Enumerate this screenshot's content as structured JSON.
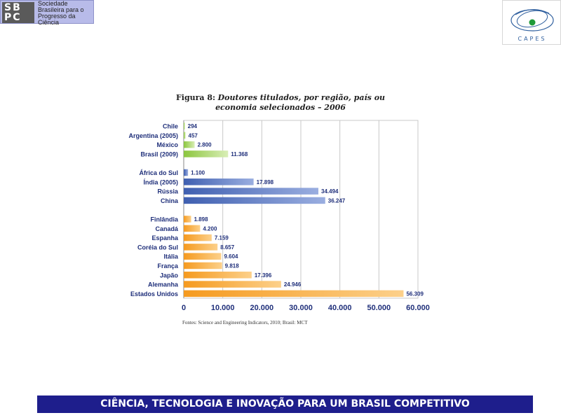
{
  "sbpc_logo": {
    "mark_line1": "SB",
    "mark_line2": "PC",
    "text_lines": [
      "Sociedade",
      "Brasileira para o",
      "Progresso da",
      "Ciência"
    ]
  },
  "capes_logo": {
    "text": "CAPES"
  },
  "figure": {
    "label": "Figura 8:",
    "title_line1": "Doutores titulados, por região, país ou",
    "title_line2": "economia selecionados – 2006"
  },
  "source": "Fontes: Science and Engineering Indicators, 2010; Brasil: MCT",
  "banner": "CIÊNCIA, TECNOLOGIA E INOVAÇÃO PARA UM BRASIL COMPETITIVO",
  "chart_data": {
    "type": "bar",
    "orientation": "horizontal",
    "xlim": [
      0,
      60000
    ],
    "x_ticks": [
      "0",
      "10.000",
      "20.000",
      "30.000",
      "40.000",
      "50.000",
      "60.000"
    ],
    "grid": true,
    "groups": [
      {
        "color": "#8cc63f",
        "light": "#d9eeb6",
        "items": [
          {
            "label": "Chile",
            "value": 294,
            "value_label": "294"
          },
          {
            "label": "Argentina (2005)",
            "value": 457,
            "value_label": "457"
          },
          {
            "label": "México",
            "value": 2800,
            "value_label": "2.800"
          },
          {
            "label": "Brasil (2009)",
            "value": 11368,
            "value_label": "11.368"
          }
        ]
      },
      {
        "color": "#3f5fb0",
        "light": "#9aaee0",
        "items": [
          {
            "label": "África do Sul",
            "value": 1100,
            "value_label": "1.100"
          },
          {
            "label": "Índia (2005)",
            "value": 17898,
            "value_label": "17.898"
          },
          {
            "label": "Rússia",
            "value": 34494,
            "value_label": "34.494"
          },
          {
            "label": "China",
            "value": 36247,
            "value_label": "36.247"
          }
        ]
      },
      {
        "color": "#f59a1f",
        "light": "#fcd08a",
        "items": [
          {
            "label": "Finlândia",
            "value": 1898,
            "value_label": "1.898"
          },
          {
            "label": "Canadá",
            "value": 4200,
            "value_label": "4.200"
          },
          {
            "label": "Espanha",
            "value": 7159,
            "value_label": "7.159"
          },
          {
            "label": "Coréia do Sul",
            "value": 8657,
            "value_label": "8.657"
          },
          {
            "label": "Itália",
            "value": 9604,
            "value_label": "9.604"
          },
          {
            "label": "França",
            "value": 9818,
            "value_label": "9.818"
          },
          {
            "label": "Japão",
            "value": 17396,
            "value_label": "17.396"
          },
          {
            "label": "Alemanha",
            "value": 24946,
            "value_label": "24.946"
          },
          {
            "label": "Estados Unidos",
            "value": 56309,
            "value_label": "56.309"
          }
        ]
      }
    ]
  }
}
